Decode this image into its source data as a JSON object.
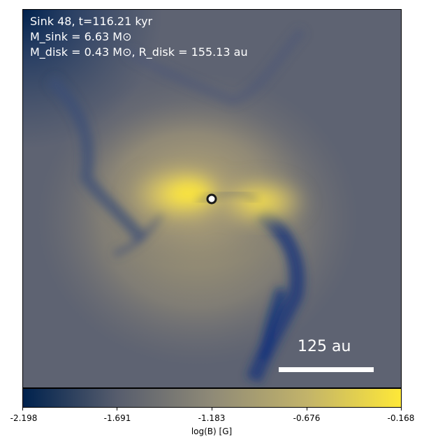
{
  "annotations": {
    "line1": "Sink 48, t=116.21 kyr",
    "line2": "M_sink = 6.63 M⊙",
    "line3": "M_disk = 0.43 M⊙, R_disk = 155.13 au"
  },
  "scale_bar": {
    "label": "125 au"
  },
  "colorbar": {
    "label": "log(B) [G]",
    "ticks": [
      "-2.198",
      "-1.691",
      "-1.183",
      "-0.676",
      "-0.168"
    ],
    "colors": [
      "#00224e",
      "#575d6d",
      "#8f8a77",
      "#c2b36a",
      "#fee838"
    ]
  },
  "colors": {
    "background": "#5e6372",
    "field_bright": "#fee838",
    "field_dark": "#00224e"
  },
  "sink_marker": {
    "icon": "sink-particle-icon"
  }
}
